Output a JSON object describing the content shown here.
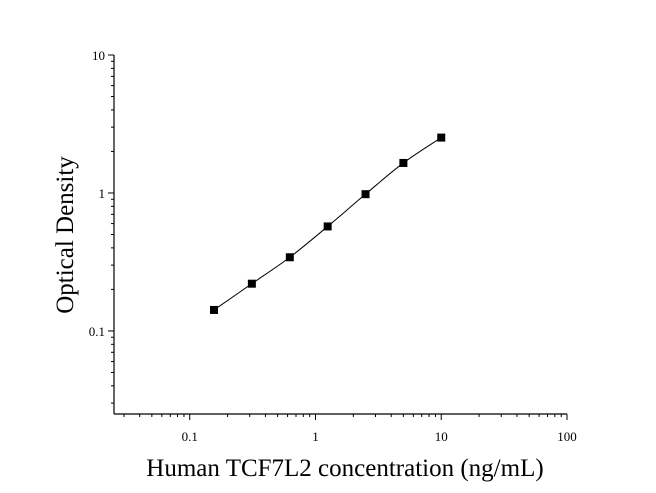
{
  "chart_data": {
    "type": "scatter",
    "xlabel": "Human TCF7L2 concentration (ng/mL)",
    "ylabel": "Optical Density",
    "xscale": "log",
    "yscale": "log",
    "xlim": [
      0.025,
      100
    ],
    "ylim": [
      0.025,
      10
    ],
    "x_tick_labels": [
      "0.1",
      "1",
      "10",
      "100"
    ],
    "y_tick_labels": [
      "0.1",
      "1",
      "10"
    ],
    "x_tick_values": [
      0.1,
      1,
      10,
      100
    ],
    "y_tick_values": [
      0.1,
      1,
      10
    ],
    "grid": false,
    "series": [
      {
        "x": [
          0.156,
          0.312,
          0.625,
          1.25,
          2.5,
          5,
          10
        ],
        "y": [
          0.142,
          0.22,
          0.342,
          0.572,
          0.98,
          1.65,
          2.52
        ],
        "marker": "square",
        "fit_curve": true
      }
    ],
    "colors": {
      "line": "#000000",
      "marker": "#000000"
    }
  }
}
